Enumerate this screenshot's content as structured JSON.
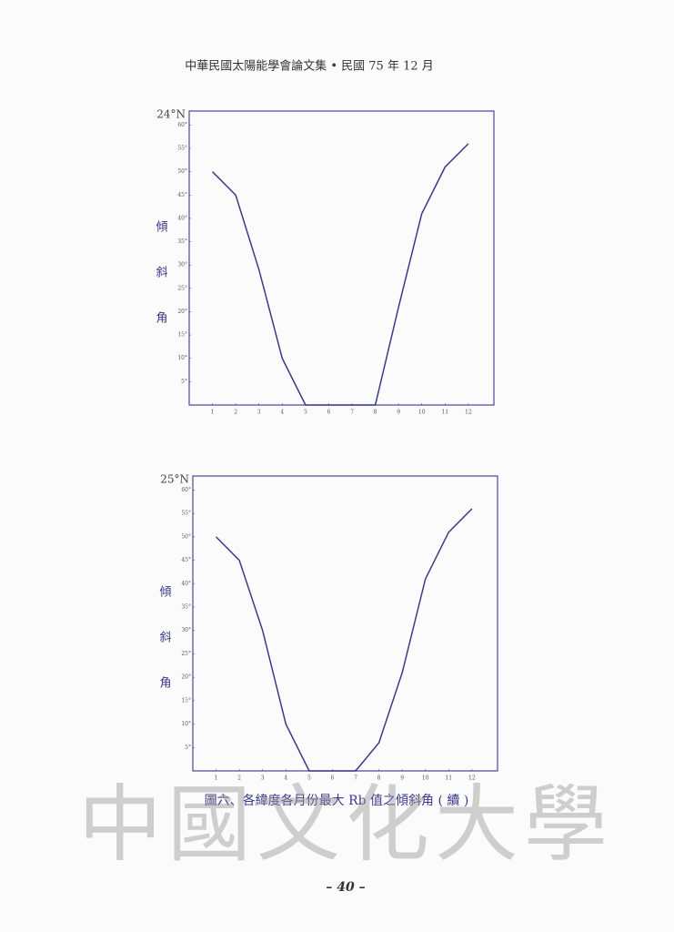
{
  "header": "中華民國太陽能學會論文集 • 民國 75 年 12 月",
  "chart_data": [
    {
      "type": "line",
      "title": "24°N",
      "y_label": "傾斜角",
      "x": [
        1,
        2,
        3,
        4,
        5,
        6,
        7,
        8,
        9,
        10,
        11,
        12
      ],
      "series": [
        {
          "color": "#3b3b86",
          "values": [
            50,
            45,
            29,
            10,
            0,
            0,
            0,
            0,
            21,
            41,
            51,
            56
          ]
        }
      ],
      "xlim": [
        0,
        13.1
      ],
      "xticks": [
        1,
        2,
        3,
        4,
        5,
        6,
        7,
        8,
        9,
        10,
        11,
        12
      ],
      "ylim": [
        0,
        63
      ],
      "yticks": [
        {
          "value": 5,
          "label": "5°"
        },
        {
          "value": 10,
          "label": "10°"
        },
        {
          "value": 15,
          "label": "15°"
        },
        {
          "value": 20,
          "label": "20°"
        },
        {
          "value": 25,
          "label": "25°"
        },
        {
          "value": 30,
          "label": "30°"
        },
        {
          "value": 35,
          "label": "35°"
        },
        {
          "value": 40,
          "label": "40°"
        },
        {
          "value": 45,
          "label": "45°"
        },
        {
          "value": 50,
          "label": "50°"
        },
        {
          "value": 55,
          "label": "55°"
        },
        {
          "value": 60,
          "label": "60°"
        }
      ]
    },
    {
      "type": "line",
      "title": "25°N",
      "y_label": "傾斜角",
      "x": [
        1,
        2,
        3,
        4,
        5,
        6,
        7,
        8,
        9,
        10,
        11,
        12
      ],
      "series": [
        {
          "color": "#3b3b86",
          "values": [
            50,
            45,
            30,
            10,
            0,
            0,
            0,
            6,
            21,
            41,
            51,
            56
          ]
        }
      ],
      "xlim": [
        0,
        13.1
      ],
      "xticks": [
        1,
        2,
        3,
        4,
        5,
        6,
        7,
        8,
        9,
        10,
        11,
        12
      ],
      "ylim": [
        0,
        63
      ],
      "yticks": [
        {
          "value": 5,
          "label": "5°"
        },
        {
          "value": 10,
          "label": "10°"
        },
        {
          "value": 15,
          "label": "15°"
        },
        {
          "value": 20,
          "label": "20°"
        },
        {
          "value": 25,
          "label": "25°"
        },
        {
          "value": 30,
          "label": "30°"
        },
        {
          "value": 35,
          "label": "35°"
        },
        {
          "value": 40,
          "label": "40°"
        },
        {
          "value": 45,
          "label": "45°"
        },
        {
          "value": 50,
          "label": "50°"
        },
        {
          "value": 55,
          "label": "55°"
        },
        {
          "value": 60,
          "label": "60°"
        }
      ]
    }
  ],
  "caption": "圖六、各緯度各月份最大 Rb 值之傾斜角 ( 續 )",
  "watermark": "中國文化大學",
  "page_number": "– 40 –"
}
